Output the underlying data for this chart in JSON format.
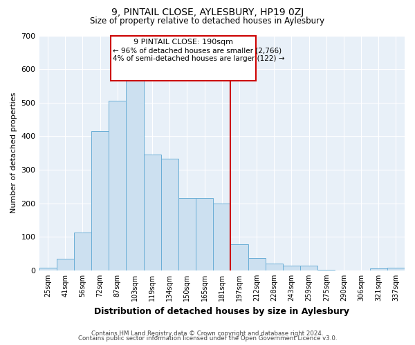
{
  "title": "9, PINTAIL CLOSE, AYLESBURY, HP19 0ZJ",
  "subtitle": "Size of property relative to detached houses in Aylesbury",
  "xlabel": "Distribution of detached houses by size in Aylesbury",
  "ylabel": "Number of detached properties",
  "bar_labels": [
    "25sqm",
    "41sqm",
    "56sqm",
    "72sqm",
    "87sqm",
    "103sqm",
    "119sqm",
    "134sqm",
    "150sqm",
    "165sqm",
    "181sqm",
    "197sqm",
    "212sqm",
    "228sqm",
    "243sqm",
    "259sqm",
    "275sqm",
    "290sqm",
    "306sqm",
    "321sqm",
    "337sqm"
  ],
  "bar_values": [
    8,
    35,
    113,
    415,
    505,
    578,
    345,
    332,
    215,
    215,
    200,
    78,
    36,
    20,
    13,
    14,
    2,
    0,
    0,
    5,
    7
  ],
  "bar_color": "#cce0f0",
  "bar_edge_color": "#6aaed6",
  "vline_color": "#cc0000",
  "annotation_title": "9 PINTAIL CLOSE: 190sqm",
  "annotation_line1": "← 96% of detached houses are smaller (2,766)",
  "annotation_line2": "4% of semi-detached houses are larger (122) →",
  "annotation_box_color": "#cc0000",
  "ylim": [
    0,
    700
  ],
  "yticks": [
    0,
    100,
    200,
    300,
    400,
    500,
    600,
    700
  ],
  "footer1": "Contains HM Land Registry data © Crown copyright and database right 2024.",
  "footer2": "Contains public sector information licensed under the Open Government Licence v3.0.",
  "fig_background": "#ffffff",
  "plot_background": "#e8f0f8",
  "grid_color": "#ffffff"
}
